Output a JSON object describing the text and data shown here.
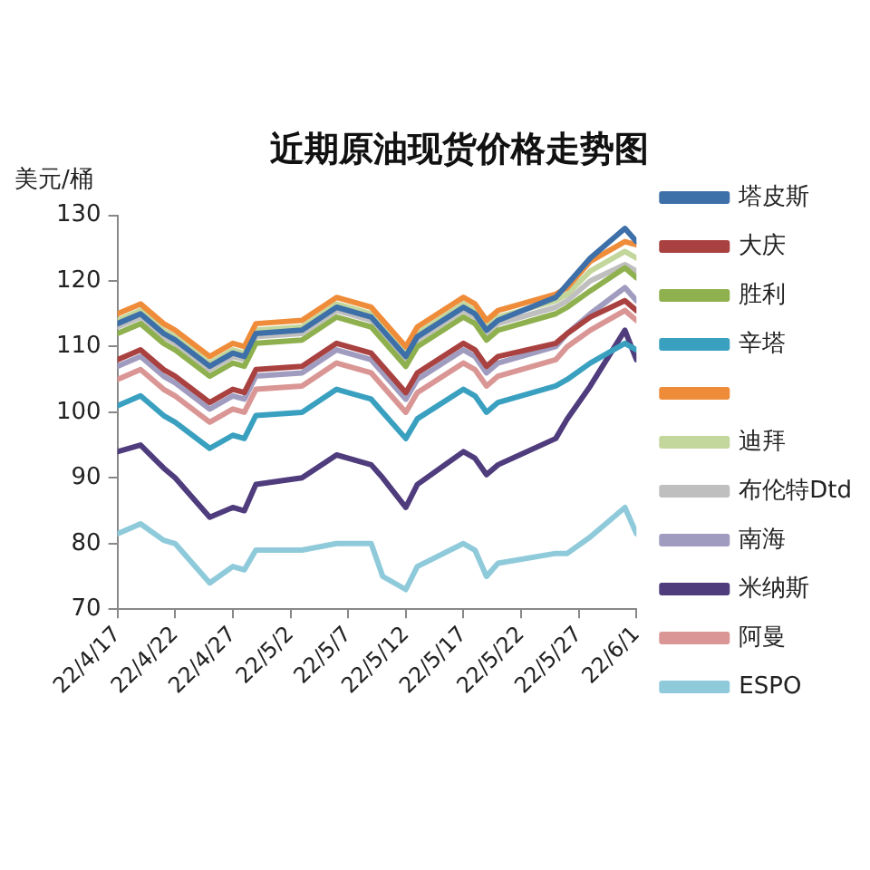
{
  "chart_data": {
    "type": "line",
    "title": "近期原油现货价格走势图",
    "ylabel": "美元/桶",
    "x": [
      "--04-17",
      "--04-19",
      "--04-21",
      "--04-22",
      "--04-25",
      "--04-27",
      "--04-28",
      "--04-29",
      "--05-03",
      "--05-06",
      "--05-09",
      "--05-10",
      "--05-12",
      "--05-13",
      "--05-17",
      "--05-18",
      "--05-19",
      "--05-20",
      "--05-25",
      "--05-26",
      "--05-28",
      "--05-31",
      "--06-01"
    ],
    "xlim": [
      "--04-17",
      "--06-01"
    ],
    "xticks": [
      {
        "value": "--04-17",
        "label": "22/4/17"
      },
      {
        "value": "--04-22",
        "label": "22/4/22"
      },
      {
        "value": "--04-27",
        "label": "22/4/27"
      },
      {
        "value": "--05-02",
        "label": "22/5/2"
      },
      {
        "value": "--05-07",
        "label": "22/5/7"
      },
      {
        "value": "--05-12",
        "label": "22/5/12"
      },
      {
        "value": "--05-17",
        "label": "22/5/17"
      },
      {
        "value": "--05-22",
        "label": "22/5/22"
      },
      {
        "value": "--05-27",
        "label": "22/5/27"
      },
      {
        "value": "--06-01",
        "label": "22/6/1"
      }
    ],
    "ylim": [
      70,
      130
    ],
    "yticks": [
      70,
      80,
      90,
      100,
      110,
      120,
      130
    ],
    "legend": "right",
    "series": [
      {
        "name": "塔皮斯",
        "color": "#3d6fa8",
        "values": [
          113.5,
          115,
          112,
          111,
          107,
          109,
          108.5,
          112,
          112.5,
          116,
          114.5,
          112.5,
          108.5,
          111.5,
          116,
          115,
          112.5,
          114,
          117.5,
          119.5,
          123.5,
          128,
          126
        ]
      },
      {
        "name": "大庆",
        "color": "#a8413f",
        "values": [
          108,
          109.5,
          106.5,
          105.5,
          101.5,
          103.5,
          103,
          106.5,
          107,
          110.5,
          109,
          107,
          103,
          106,
          110.5,
          109.5,
          107,
          108.5,
          110.5,
          112,
          114.5,
          117,
          115.5
        ]
      },
      {
        "name": "胜利",
        "color": "#8fb04e",
        "values": [
          112,
          113.5,
          110.5,
          109.5,
          105.5,
          107.5,
          107,
          110.5,
          111,
          114.5,
          113,
          111,
          107,
          110,
          114.5,
          113.5,
          111,
          112.5,
          115,
          116,
          118.5,
          122,
          120.5
        ]
      },
      {
        "name": "辛塔",
        "color": "#3aa0c0",
        "values": [
          101,
          102.5,
          99.5,
          98.5,
          94.5,
          96.5,
          96,
          99.5,
          100,
          103.5,
          102,
          100,
          96,
          99,
          103.5,
          102.5,
          100,
          101.5,
          104,
          105,
          107.5,
          110.5,
          109.5
        ]
      },
      {
        "color": "#ef8c3a",
        "values": [
          115,
          116.5,
          113.5,
          112.5,
          108.5,
          110.5,
          110,
          113.5,
          114,
          117.5,
          116,
          114,
          110,
          113,
          117.5,
          116.5,
          114,
          115.5,
          118,
          119,
          123,
          126,
          125.5
        ]
      },
      {
        "name": "迪拜",
        "color": "#c3d69b",
        "values": [
          114,
          115.5,
          112.5,
          111.5,
          107.5,
          109.5,
          109,
          112.5,
          113,
          116.5,
          115,
          113,
          109,
          112,
          116.5,
          115.5,
          113,
          114.5,
          117,
          118,
          121.5,
          124.5,
          123.5
        ]
      },
      {
        "name": "布伦特Dtd",
        "color": "#bfbfbf",
        "values": [
          113,
          114.5,
          111.5,
          110.5,
          106.5,
          108.5,
          108,
          111.5,
          112,
          115.5,
          114,
          112,
          108,
          111,
          115.5,
          114.5,
          112,
          113.5,
          116,
          117,
          120,
          122.5,
          121.5
        ]
      },
      {
        "name": "南海",
        "color": "#a09cc0",
        "values": [
          107,
          108.5,
          105.5,
          104.5,
          100.5,
          102.5,
          102,
          105.5,
          106,
          109.5,
          108,
          106,
          102,
          105,
          109.5,
          108.5,
          106,
          107.5,
          110,
          112,
          115,
          119,
          117
        ]
      },
      {
        "name": "米纳斯",
        "color": "#4f3c7d",
        "values": [
          94,
          95,
          91.5,
          90,
          84,
          85.5,
          85,
          89,
          90,
          93.5,
          92,
          90,
          85.5,
          89,
          94,
          93,
          90.5,
          92,
          96,
          99,
          104,
          112.5,
          108
        ]
      },
      {
        "name": "阿曼",
        "color": "#d99694",
        "values": [
          105,
          106.5,
          103.5,
          102.5,
          98.5,
          100.5,
          100,
          103.5,
          104,
          107.5,
          106,
          104,
          100,
          103,
          107.5,
          106.5,
          104,
          105.5,
          108,
          110,
          112.5,
          115.5,
          114
        ]
      },
      {
        "name": "ESPO",
        "color": "#8fcadb",
        "values": [
          81.5,
          83,
          80.5,
          80,
          74,
          76.5,
          76,
          79,
          79,
          80,
          80,
          75,
          73,
          76.5,
          80,
          79,
          75,
          77,
          78.5,
          78.5,
          81,
          85.5,
          81.5
        ]
      }
    ]
  }
}
